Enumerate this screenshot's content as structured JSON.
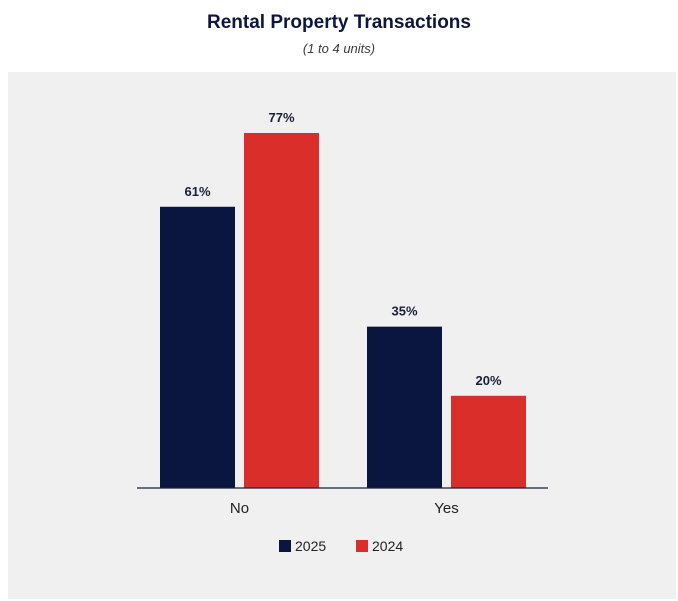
{
  "chart_data": {
    "type": "bar",
    "title": "Rental Property Transactions",
    "subtitle": "(1 to 4 units)",
    "categories": [
      "No",
      "Yes"
    ],
    "series": [
      {
        "name": "2025",
        "values": [
          61,
          35
        ],
        "labels": [
          "61%",
          "35%"
        ],
        "color": "#0b1640"
      },
      {
        "name": "2024",
        "values": [
          77,
          20
        ],
        "labels": [
          "77%",
          "20%"
        ],
        "color": "#d92e2a"
      }
    ],
    "ylim": [
      0,
      100
    ],
    "grid": false,
    "legend": "bottom-center",
    "background": "#f0f0f0"
  }
}
